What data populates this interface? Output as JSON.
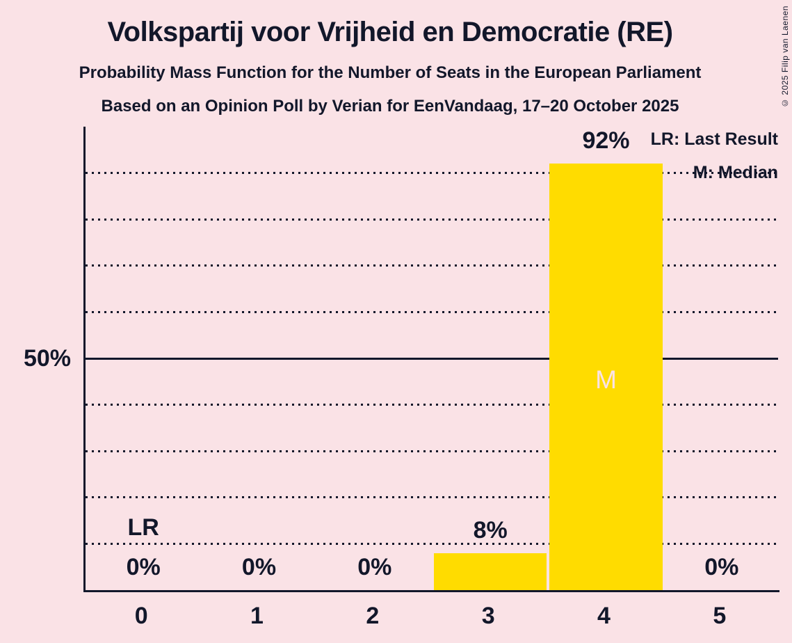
{
  "title": "Volkspartij voor Vrijheid en Democratie (RE)",
  "subtitle1": "Probability Mass Function for the Number of Seats in the European Parliament",
  "subtitle2": "Based on an Opinion Poll by Verian for EenVandaag, 17–20 October 2025",
  "copyright": "© 2025 Filip van Laenen",
  "legend": {
    "lr": "LR: Last Result",
    "m": "M: Median"
  },
  "colors": {
    "background": "#fae2e6",
    "ink": "#12172a",
    "bar": "#ffdc00",
    "median_letter": "#fae2e6"
  },
  "chart_data": {
    "type": "bar",
    "title": "Volkspartij voor Vrijheid en Democratie (RE)",
    "subtitle": "Probability Mass Function for the Number of Seats in the European Parliament",
    "source_note": "Based on an Opinion Poll by Verian for EenVandaag, 17–20 October 2025",
    "categories": [
      "0",
      "1",
      "2",
      "3",
      "4",
      "5"
    ],
    "values": [
      0,
      0,
      0,
      8,
      92,
      0
    ],
    "value_labels": [
      "0%",
      "0%",
      "0%",
      "8%",
      "92%",
      "0%"
    ],
    "ylim": [
      0,
      100
    ],
    "y_tick": {
      "value": 50,
      "label": "50%"
    },
    "gridlines": [
      10,
      20,
      30,
      40,
      50,
      60,
      70,
      80,
      90
    ],
    "solid_gridline": 50,
    "grid_style": "dotted",
    "legend_position": "top-right",
    "last_result_index": 0,
    "median_index": 4,
    "annotations": {
      "last_result": "LR",
      "median": "M"
    }
  }
}
